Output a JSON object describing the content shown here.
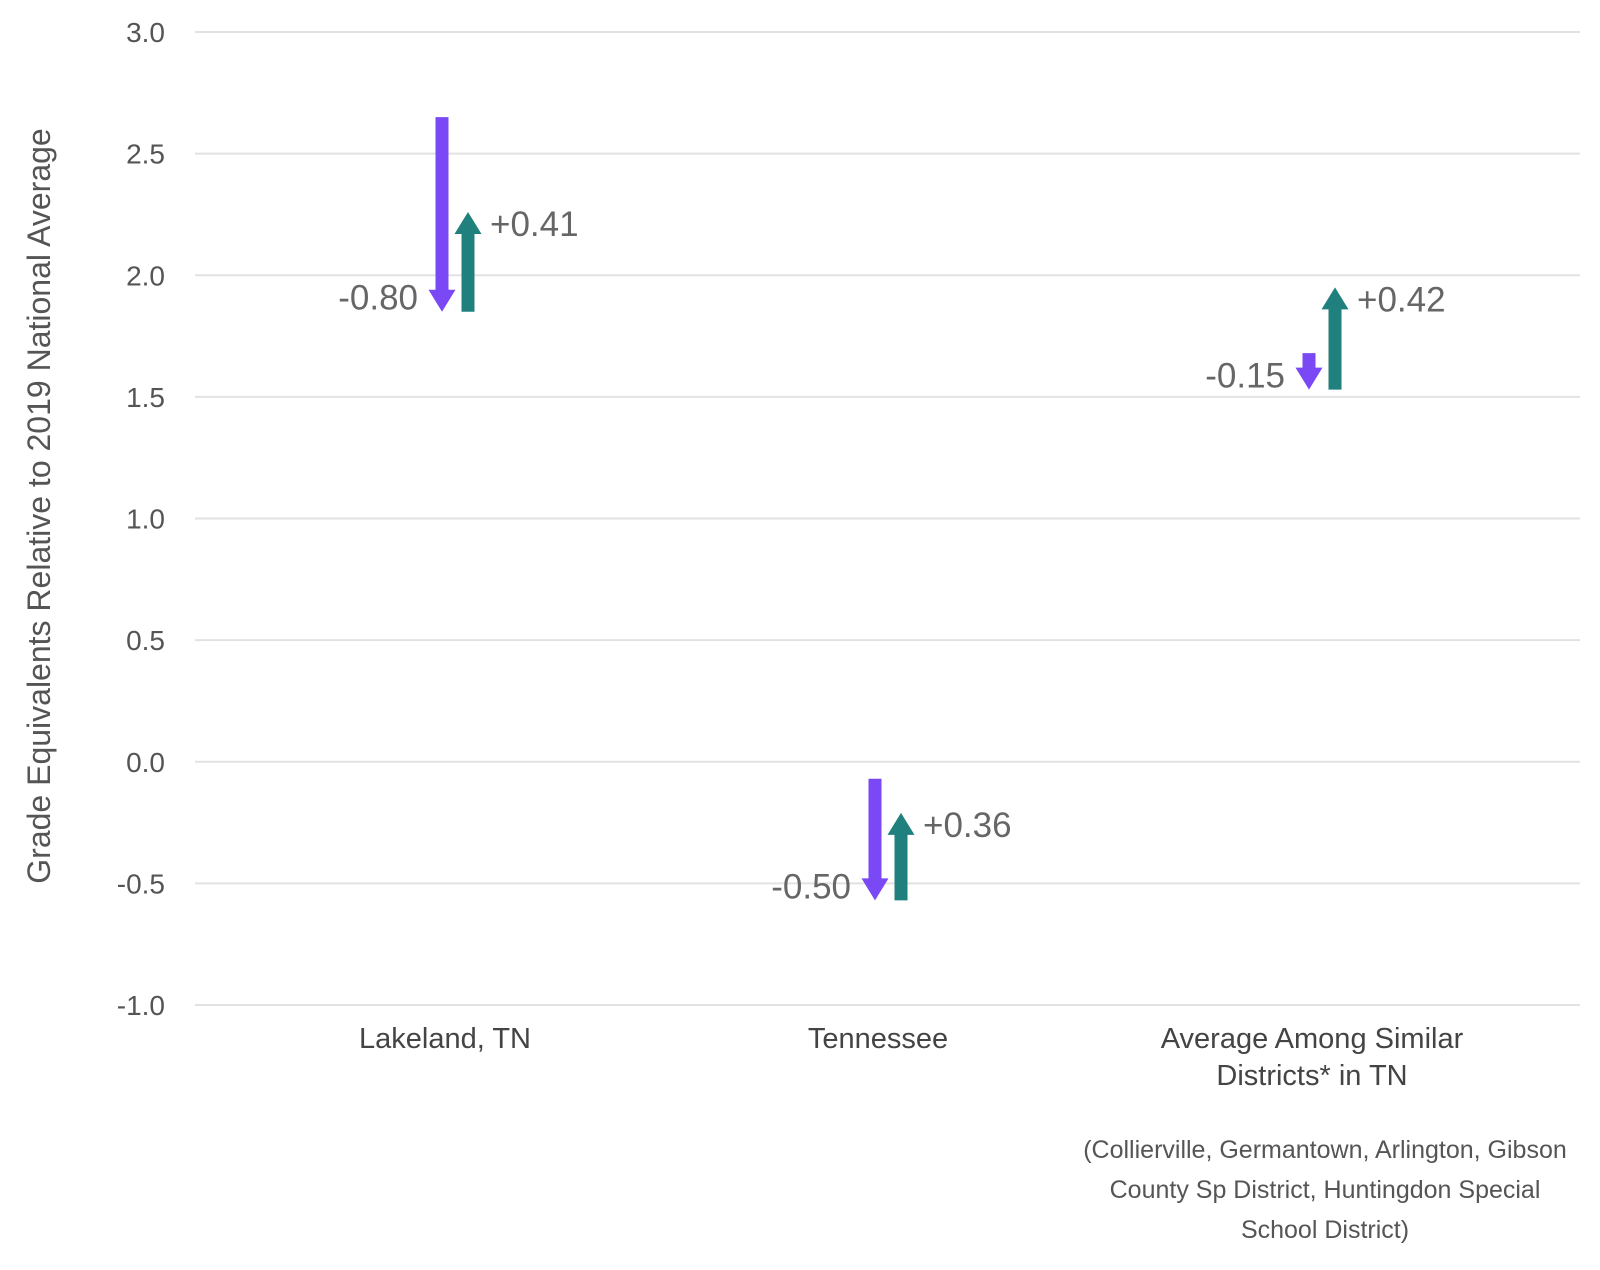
{
  "chart_data": {
    "type": "arrow",
    "ylabel": "Grade Equivalents Relative to 2019 National Average",
    "ylim": [
      -1.0,
      3.0
    ],
    "yticks": [
      3.0,
      2.5,
      2.0,
      1.5,
      1.0,
      0.5,
      0.0,
      -0.5,
      -1.0
    ],
    "grid": true,
    "categories": [
      [
        "Lakeland, TN"
      ],
      [
        "Tennessee"
      ],
      [
        "Average Among Similar",
        "Districts* in TN"
      ]
    ],
    "series": [
      {
        "color": "#7a48f5",
        "direction": "down",
        "start": [
          2.65,
          -0.07,
          1.68
        ],
        "end": [
          1.85,
          -0.57,
          1.53
        ],
        "labels": [
          "-0.80",
          "-0.50",
          "-0.15"
        ]
      },
      {
        "color": "#20807d",
        "direction": "up",
        "start": [
          1.85,
          -0.57,
          1.53
        ],
        "end": [
          2.26,
          -0.21,
          1.95
        ],
        "labels": [
          "+0.41",
          "+0.36",
          "+0.42"
        ]
      }
    ],
    "note": [
      "(Collierville, Germantown, Arlington, Gibson",
      "County Sp District, Huntingdon Special",
      "School District)"
    ]
  }
}
